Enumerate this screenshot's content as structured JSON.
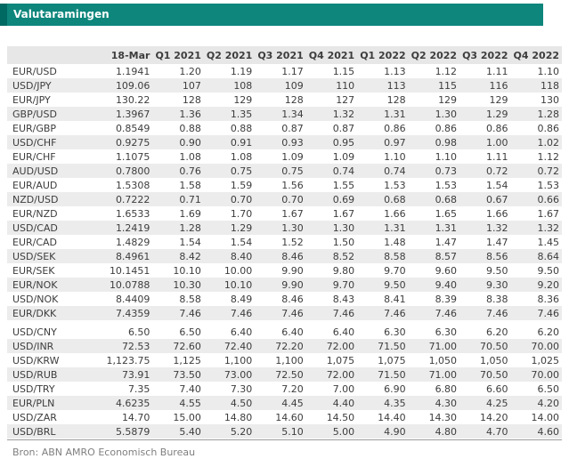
{
  "title": "Valutaramingen",
  "footer": {
    "source": "Bron: ABN AMRO Economisch Bureau"
  },
  "colors": {
    "accent_teal": "#0E867C",
    "accent_dark_teal": "#006962",
    "header_row_bg": "#e7e7e7",
    "stripe_bg": "#ececec",
    "text": "#3d3d3d",
    "source_text": "#7f7f7f",
    "rule": "#9b9b9b"
  },
  "table": {
    "corner_label": "",
    "columns": [
      "18-Mar",
      "Q1 2021",
      "Q2 2021",
      "Q3 2021",
      "Q4 2021",
      "Q1 2022",
      "Q2 2022",
      "Q3 2022",
      "Q4 2022"
    ],
    "rows": [
      {
        "pair": "EUR/USD",
        "values": [
          "1.1941",
          "1.20",
          "1.19",
          "1.17",
          "1.15",
          "1.13",
          "1.12",
          "1.11",
          "1.10"
        ]
      },
      {
        "pair": "USD/JPY",
        "values": [
          "109.06",
          "107",
          "108",
          "109",
          "110",
          "113",
          "115",
          "116",
          "118"
        ]
      },
      {
        "pair": "EUR/JPY",
        "values": [
          "130.22",
          "128",
          "129",
          "128",
          "127",
          "128",
          "129",
          "129",
          "130"
        ]
      },
      {
        "pair": "GBP/USD",
        "values": [
          "1.3967",
          "1.36",
          "1.35",
          "1.34",
          "1.32",
          "1.31",
          "1.30",
          "1.29",
          "1.28"
        ]
      },
      {
        "pair": "EUR/GBP",
        "values": [
          "0.8549",
          "0.88",
          "0.88",
          "0.87",
          "0.87",
          "0.86",
          "0.86",
          "0.86",
          "0.86"
        ]
      },
      {
        "pair": "USD/CHF",
        "values": [
          "0.9275",
          "0.90",
          "0.91",
          "0.93",
          "0.95",
          "0.97",
          "0.98",
          "1.00",
          "1.02"
        ]
      },
      {
        "pair": "EUR/CHF",
        "values": [
          "1.1075",
          "1.08",
          "1.08",
          "1.09",
          "1.09",
          "1.10",
          "1.10",
          "1.11",
          "1.12"
        ]
      },
      {
        "pair": "AUD/USD",
        "values": [
          "0.7800",
          "0.76",
          "0.75",
          "0.75",
          "0.74",
          "0.74",
          "0.73",
          "0.72",
          "0.72"
        ]
      },
      {
        "pair": "EUR/AUD",
        "values": [
          "1.5308",
          "1.58",
          "1.59",
          "1.56",
          "1.55",
          "1.53",
          "1.53",
          "1.54",
          "1.53"
        ]
      },
      {
        "pair": "NZD/USD",
        "values": [
          "0.7222",
          "0.71",
          "0.70",
          "0.70",
          "0.69",
          "0.68",
          "0.68",
          "0.67",
          "0.66"
        ]
      },
      {
        "pair": "EUR/NZD",
        "values": [
          "1.6533",
          "1.69",
          "1.70",
          "1.67",
          "1.67",
          "1.66",
          "1.65",
          "1.66",
          "1.67"
        ]
      },
      {
        "pair": "USD/CAD",
        "values": [
          "1.2419",
          "1.28",
          "1.29",
          "1.30",
          "1.30",
          "1.31",
          "1.31",
          "1.32",
          "1.32"
        ]
      },
      {
        "pair": "EUR/CAD",
        "values": [
          "1.4829",
          "1.54",
          "1.54",
          "1.52",
          "1.50",
          "1.48",
          "1.47",
          "1.47",
          "1.45"
        ]
      },
      {
        "pair": "USD/SEK",
        "values": [
          "8.4961",
          "8.42",
          "8.40",
          "8.46",
          "8.52",
          "8.58",
          "8.57",
          "8.56",
          "8.64"
        ]
      },
      {
        "pair": "EUR/SEK",
        "values": [
          "10.1451",
          "10.10",
          "10.00",
          "9.90",
          "9.80",
          "9.70",
          "9.60",
          "9.50",
          "9.50"
        ]
      },
      {
        "pair": "EUR/NOK",
        "values": [
          "10.0788",
          "10.30",
          "10.10",
          "9.90",
          "9.70",
          "9.50",
          "9.40",
          "9.30",
          "9.20"
        ]
      },
      {
        "pair": "USD/NOK",
        "values": [
          "8.4409",
          "8.58",
          "8.49",
          "8.46",
          "8.43",
          "8.41",
          "8.39",
          "8.38",
          "8.36"
        ]
      },
      {
        "pair": "EUR/DKK",
        "values": [
          "7.4359",
          "7.46",
          "7.46",
          "7.46",
          "7.46",
          "7.46",
          "7.46",
          "7.46",
          "7.46"
        ]
      },
      {
        "pair": "USD/CNY",
        "gap_before": true,
        "values": [
          "6.50",
          "6.50",
          "6.40",
          "6.40",
          "6.40",
          "6.30",
          "6.30",
          "6.20",
          "6.20"
        ]
      },
      {
        "pair": "USD/INR",
        "values": [
          "72.53",
          "72.60",
          "72.40",
          "72.20",
          "72.00",
          "71.50",
          "71.00",
          "70.50",
          "70.00"
        ]
      },
      {
        "pair": "USD/KRW",
        "values": [
          "1,123.75",
          "1,125",
          "1,100",
          "1,100",
          "1,075",
          "1,075",
          "1,050",
          "1,050",
          "1,025"
        ]
      },
      {
        "pair": "USD/RUB",
        "values": [
          "73.91",
          "73.50",
          "73.00",
          "72.50",
          "72.00",
          "71.50",
          "71.00",
          "70.50",
          "70.00"
        ]
      },
      {
        "pair": "USD/TRY",
        "values": [
          "7.35",
          "7.40",
          "7.30",
          "7.20",
          "7.00",
          "6.90",
          "6.80",
          "6.60",
          "6.50"
        ]
      },
      {
        "pair": "EUR/PLN",
        "values": [
          "4.6235",
          "4.55",
          "4.50",
          "4.45",
          "4.40",
          "4.35",
          "4.30",
          "4.25",
          "4.20"
        ]
      },
      {
        "pair": "USD/ZAR",
        "values": [
          "14.70",
          "15.00",
          "14.80",
          "14.60",
          "14.50",
          "14.40",
          "14.30",
          "14.20",
          "14.00"
        ]
      },
      {
        "pair": "USD/BRL",
        "values": [
          "5.5879",
          "5.40",
          "5.20",
          "5.10",
          "5.00",
          "4.90",
          "4.80",
          "4.70",
          "4.60"
        ]
      }
    ]
  }
}
